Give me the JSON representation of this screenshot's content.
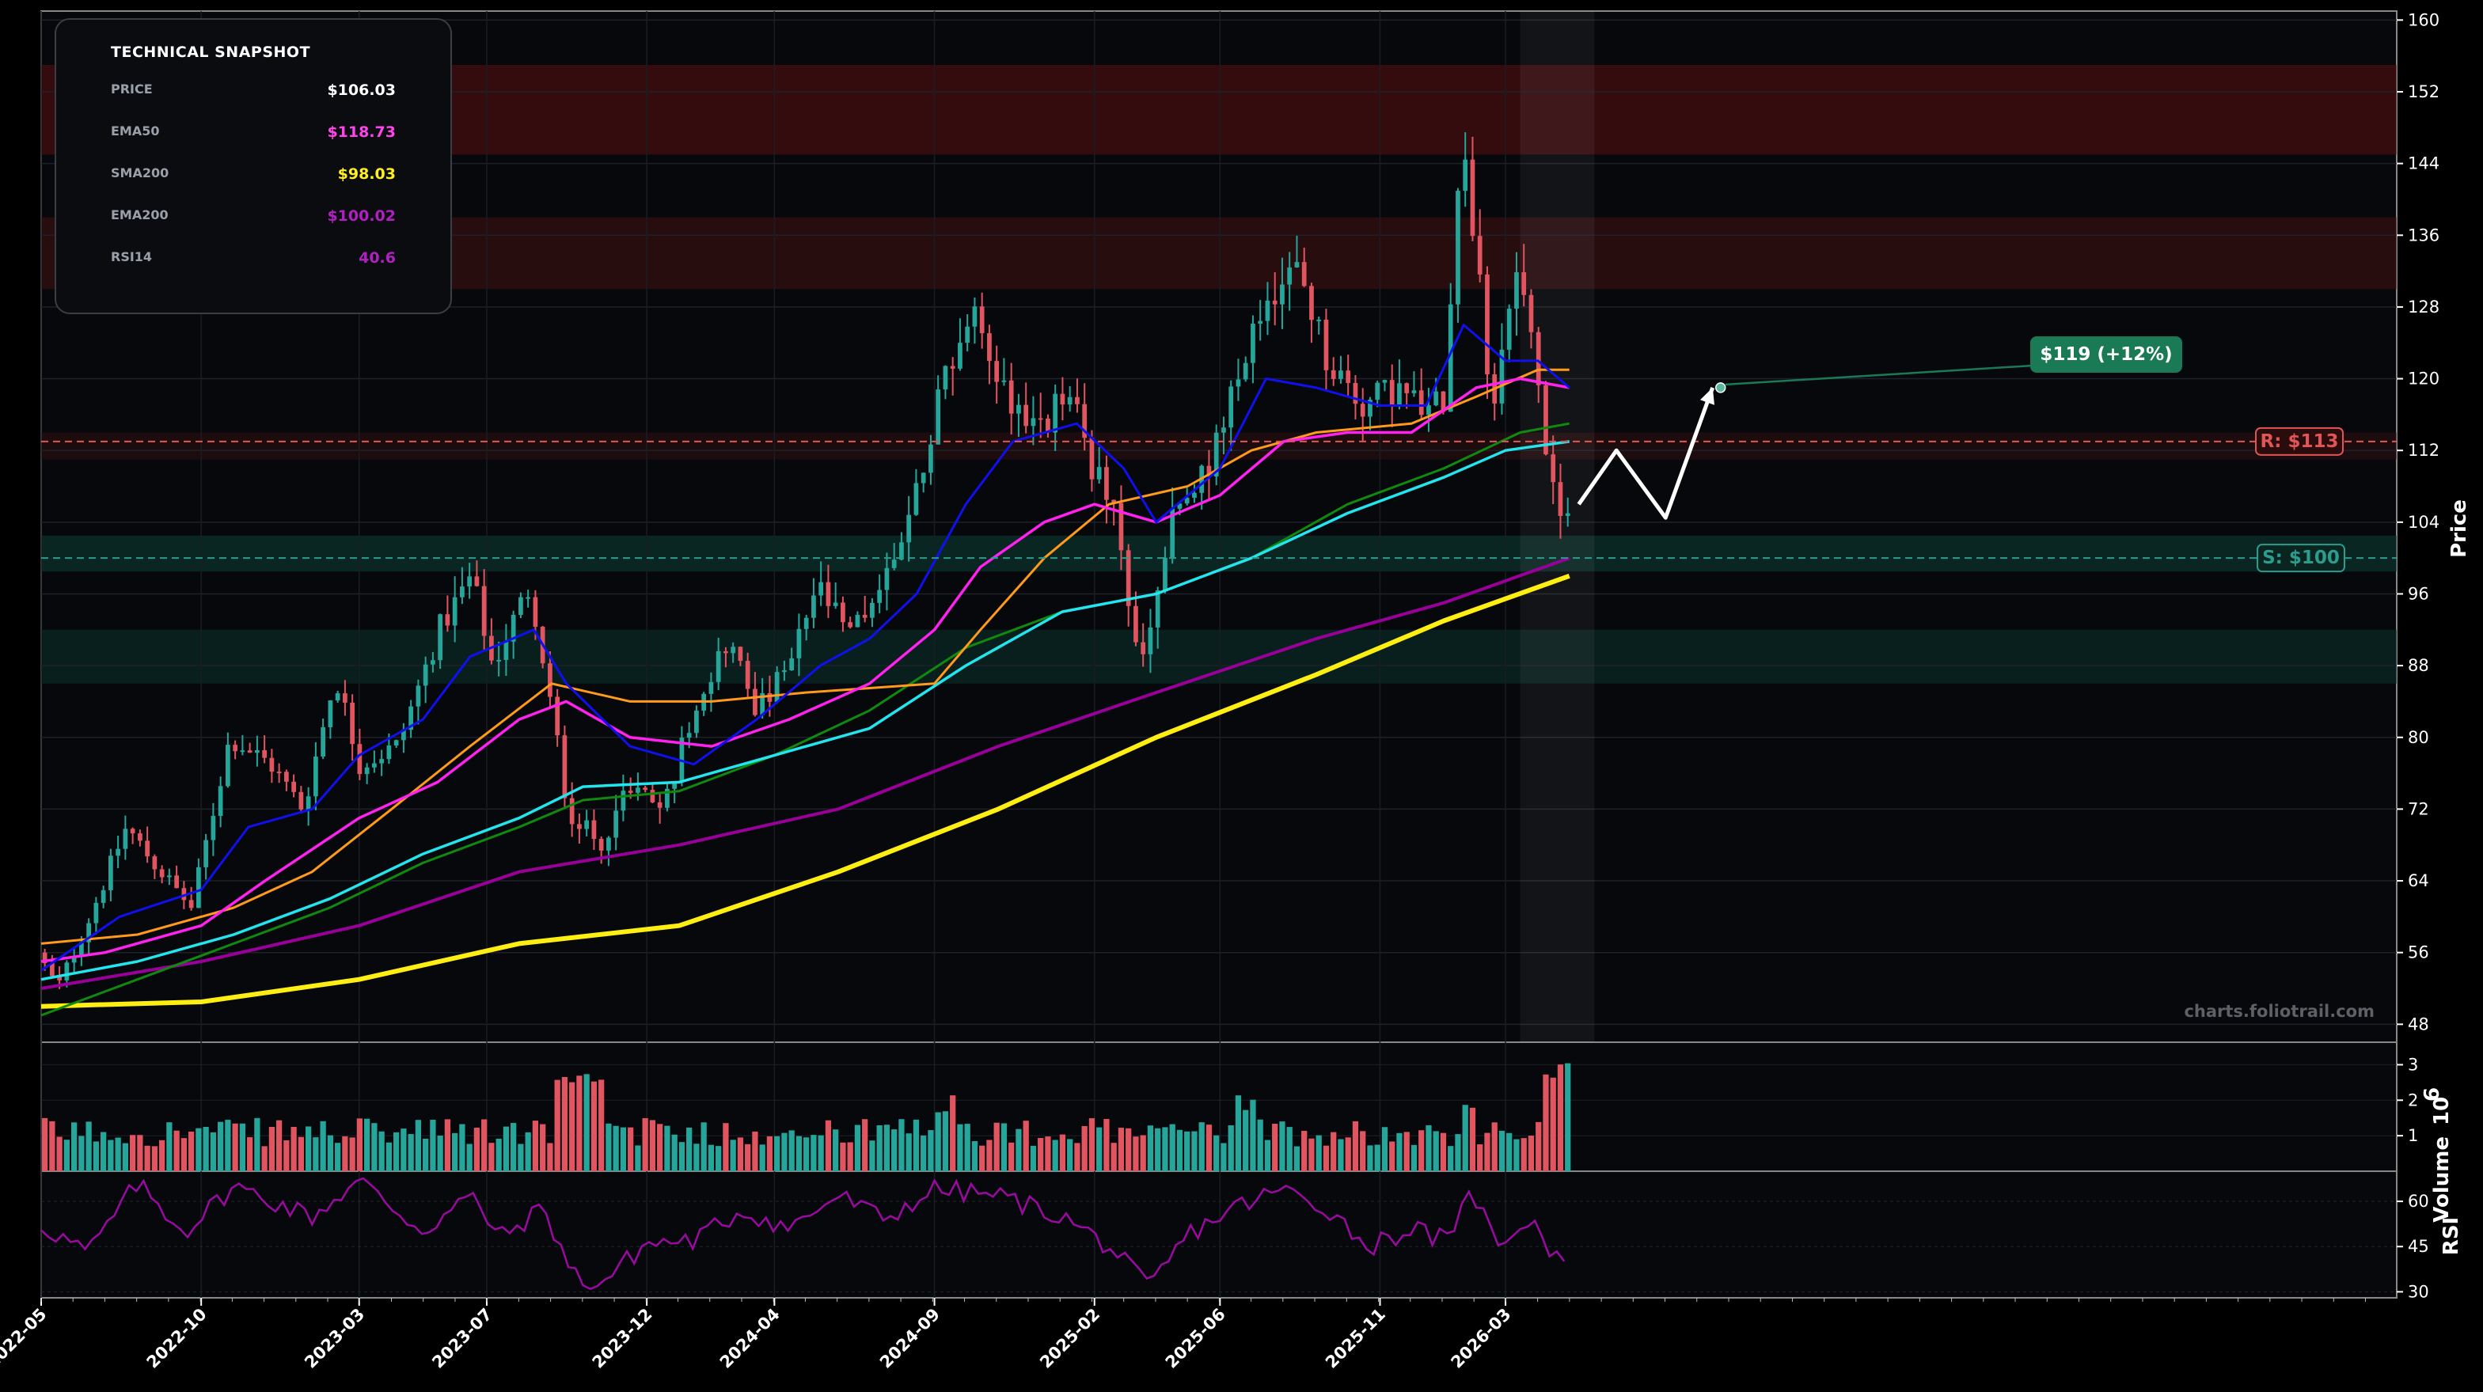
{
  "chart_data": {
    "type": "candlestick",
    "watermark": "charts.foliotrail.com",
    "price_axis": {
      "label": "Price",
      "ylim": [
        46,
        161
      ],
      "ticks": [
        48,
        56,
        64,
        72,
        80,
        88,
        96,
        104,
        112,
        120,
        128,
        136,
        144,
        152,
        160
      ]
    },
    "volume_axis": {
      "label": "Volume",
      "unit_label": "10",
      "unit_exponent": "6",
      "ylim": [
        0,
        3.5
      ],
      "ticks": [
        1,
        2,
        3
      ]
    },
    "rsi_axis": {
      "label": "RSI",
      "ylim": [
        28,
        70
      ],
      "ticks": [
        30,
        45,
        60
      ]
    },
    "x_axis": {
      "range": [
        "2022-05-01",
        "2028-06-30"
      ],
      "ticks": [
        "2022-05",
        "2022-10",
        "2023-03",
        "2023-07",
        "2023-12",
        "2024-04",
        "2024-09",
        "2025-02",
        "2025-06",
        "2025-11",
        "2026-03"
      ],
      "tick_dates": [
        "2022-05-01",
        "2022-10-01",
        "2023-03-01",
        "2023-07-01",
        "2023-12-01",
        "2024-04-01",
        "2024-09-01",
        "2025-02-01",
        "2025-06-01",
        "2025-11-01",
        "2026-03-01"
      ]
    },
    "snapshot": {
      "title": "TECHNICAL SNAPSHOT",
      "rows": [
        {
          "label": "PRICE",
          "value": "$106.03",
          "color": "#ffffff"
        },
        {
          "label": "EMA50",
          "value": "$118.73",
          "color": "#ff44ee"
        },
        {
          "label": "SMA200",
          "value": "$98.03",
          "color": "#ffee22"
        },
        {
          "label": "EMA200",
          "value": "$100.02",
          "color": "#b020c0"
        },
        {
          "label": "RSI14",
          "value": "40.6",
          "color": "#b020c0"
        }
      ]
    },
    "levels": {
      "resistance": {
        "label": "R: $113",
        "value": 113,
        "color": "#e05555"
      },
      "support": {
        "label": "S: $100",
        "value": 100,
        "color": "#2a9d8f"
      }
    },
    "zones": [
      {
        "kind": "resistance",
        "from": 145,
        "to": 155,
        "color": "#5a1010",
        "opacity": 0.55
      },
      {
        "kind": "resistance",
        "from": 130,
        "to": 138,
        "color": "#4a1212",
        "opacity": 0.5
      },
      {
        "kind": "resistance",
        "from": 111,
        "to": 114,
        "color": "#3a1212",
        "opacity": 0.45
      },
      {
        "kind": "support",
        "from": 98.5,
        "to": 102.5,
        "color": "#0e3a34",
        "opacity": 0.6
      },
      {
        "kind": "support",
        "from": 86,
        "to": 92,
        "color": "#0c2e2a",
        "opacity": 0.6
      }
    ],
    "target": {
      "label": "$119 (+12%)",
      "value": 119,
      "date": "2026-09-15"
    },
    "projection": [
      {
        "date": "2026-05-10",
        "value": 106
      },
      {
        "date": "2026-06-15",
        "value": 112
      },
      {
        "date": "2026-08-01",
        "value": 104.5
      },
      {
        "date": "2026-09-15",
        "value": 119
      }
    ],
    "highlight_window": [
      "2026-03-15",
      "2026-05-25"
    ],
    "ma_colors": {
      "blue": "#1010ee",
      "orange": "#ff9a1a",
      "magenta": "#ff22ee",
      "green": "#0f8a0f",
      "cyan": "#22e5ee",
      "purple": "#990099",
      "yellow": "#ffee11"
    },
    "up_color": "#26a69a",
    "down_color": "#e05560",
    "anchors": [
      [
        "2022-05-01",
        56
      ],
      [
        "2022-05-20",
        52
      ],
      [
        "2022-06-20",
        60
      ],
      [
        "2022-07-25",
        70
      ],
      [
        "2022-08-20",
        66
      ],
      [
        "2022-09-25",
        61
      ],
      [
        "2022-11-01",
        80
      ],
      [
        "2022-12-10",
        77
      ],
      [
        "2023-01-10",
        72
      ],
      [
        "2023-02-10",
        87
      ],
      [
        "2023-03-05",
        77
      ],
      [
        "2023-04-10",
        79
      ],
      [
        "2023-05-20",
        92
      ],
      [
        "2023-06-20",
        98
      ],
      [
        "2023-07-10",
        88
      ],
      [
        "2023-08-15",
        97
      ],
      [
        "2023-09-01",
        86
      ],
      [
        "2023-09-20",
        72
      ],
      [
        "2023-10-20",
        68
      ],
      [
        "2023-11-20",
        75
      ],
      [
        "2023-12-20",
        72
      ],
      [
        "2024-01-20",
        84
      ],
      [
        "2024-02-20",
        91
      ],
      [
        "2024-03-20",
        83
      ],
      [
        "2024-04-20",
        88
      ],
      [
        "2024-05-15",
        97
      ],
      [
        "2024-06-15",
        91
      ],
      [
        "2024-07-20",
        98
      ],
      [
        "2024-08-15",
        106
      ],
      [
        "2024-09-15",
        121
      ],
      [
        "2024-10-10",
        127
      ],
      [
        "2024-11-15",
        118
      ],
      [
        "2024-12-15",
        114
      ],
      [
        "2025-01-10",
        119
      ],
      [
        "2025-01-25",
        113
      ],
      [
        "2025-02-25",
        104
      ],
      [
        "2025-03-20",
        87
      ],
      [
        "2025-04-20",
        104
      ],
      [
        "2025-05-20",
        109
      ],
      [
        "2025-06-20",
        119
      ],
      [
        "2025-07-20",
        130
      ],
      [
        "2025-08-20",
        132
      ],
      [
        "2025-09-15",
        122
      ],
      [
        "2025-10-20",
        117
      ],
      [
        "2025-11-20",
        119
      ],
      [
        "2025-12-20",
        116
      ],
      [
        "2026-01-05",
        118
      ],
      [
        "2026-01-20",
        147
      ],
      [
        "2026-02-01",
        138
      ],
      [
        "2026-02-20",
        117
      ],
      [
        "2026-03-15",
        134
      ],
      [
        "2026-04-01",
        122
      ],
      [
        "2026-04-20",
        106
      ],
      [
        "2026-05-01",
        106
      ]
    ],
    "ma_points": {
      "blue": [
        [
          "2022-05-01",
          54
        ],
        [
          "2022-07-15",
          60
        ],
        [
          "2022-10-01",
          63
        ],
        [
          "2022-11-15",
          70
        ],
        [
          "2023-01-15",
          72
        ],
        [
          "2023-03-01",
          78
        ],
        [
          "2023-05-01",
          82
        ],
        [
          "2023-06-15",
          89
        ],
        [
          "2023-08-15",
          92
        ],
        [
          "2023-09-15",
          86
        ],
        [
          "2023-11-15",
          79
        ],
        [
          "2024-01-15",
          77
        ],
        [
          "2024-03-15",
          82
        ],
        [
          "2024-05-15",
          88
        ],
        [
          "2024-07-01",
          91
        ],
        [
          "2024-08-15",
          96
        ],
        [
          "2024-10-01",
          106
        ],
        [
          "2024-11-15",
          113
        ],
        [
          "2025-01-15",
          115
        ],
        [
          "2025-03-01",
          110
        ],
        [
          "2025-04-01",
          104
        ],
        [
          "2025-06-01",
          110
        ],
        [
          "2025-07-15",
          120
        ],
        [
          "2025-09-01",
          119
        ],
        [
          "2025-11-01",
          117
        ],
        [
          "2025-12-15",
          117
        ],
        [
          "2026-01-20",
          126
        ],
        [
          "2026-03-01",
          122
        ],
        [
          "2026-04-01",
          122
        ],
        [
          "2026-05-01",
          119
        ]
      ],
      "orange": [
        [
          "2022-05-01",
          57
        ],
        [
          "2022-08-01",
          58
        ],
        [
          "2022-11-01",
          61
        ],
        [
          "2023-01-15",
          65
        ],
        [
          "2023-04-01",
          72
        ],
        [
          "2023-06-15",
          79
        ],
        [
          "2023-09-01",
          86
        ],
        [
          "2023-11-15",
          84
        ],
        [
          "2024-02-01",
          84
        ],
        [
          "2024-05-01",
          85
        ],
        [
          "2024-09-01",
          86
        ],
        [
          "2024-10-15",
          92
        ],
        [
          "2024-12-15",
          100
        ],
        [
          "2025-02-15",
          106
        ],
        [
          "2025-05-01",
          108
        ],
        [
          "2025-07-01",
          112
        ],
        [
          "2025-09-01",
          114
        ],
        [
          "2025-12-01",
          115
        ],
        [
          "2026-02-01",
          118
        ],
        [
          "2026-04-01",
          121
        ],
        [
          "2026-05-01",
          121
        ]
      ],
      "magenta": [
        [
          "2022-05-01",
          55
        ],
        [
          "2022-07-01",
          56
        ],
        [
          "2022-10-01",
          59
        ],
        [
          "2022-12-01",
          64
        ],
        [
          "2023-03-01",
          71
        ],
        [
          "2023-05-15",
          75
        ],
        [
          "2023-08-01",
          82
        ],
        [
          "2023-09-15",
          84
        ],
        [
          "2023-11-15",
          80
        ],
        [
          "2024-02-01",
          79
        ],
        [
          "2024-04-15",
          82
        ],
        [
          "2024-07-01",
          86
        ],
        [
          "2024-09-01",
          92
        ],
        [
          "2024-10-15",
          99
        ],
        [
          "2024-12-15",
          104
        ],
        [
          "2025-02-01",
          106
        ],
        [
          "2025-04-01",
          104
        ],
        [
          "2025-06-01",
          107
        ],
        [
          "2025-08-01",
          113
        ],
        [
          "2025-10-01",
          114
        ],
        [
          "2025-12-01",
          114
        ],
        [
          "2026-02-01",
          119
        ],
        [
          "2026-03-15",
          120
        ],
        [
          "2026-05-01",
          119
        ]
      ],
      "green": [
        [
          "2022-05-01",
          49
        ],
        [
          "2022-08-01",
          53
        ],
        [
          "2022-11-01",
          57
        ],
        [
          "2023-02-01",
          61
        ],
        [
          "2023-05-01",
          66
        ],
        [
          "2023-08-01",
          70
        ],
        [
          "2023-10-01",
          73
        ],
        [
          "2024-01-01",
          74
        ],
        [
          "2024-04-01",
          78
        ],
        [
          "2024-07-01",
          83
        ],
        [
          "2024-10-01",
          90
        ],
        [
          "2025-01-01",
          94
        ],
        [
          "2025-04-01",
          96
        ],
        [
          "2025-07-01",
          100
        ],
        [
          "2025-10-01",
          106
        ],
        [
          "2026-01-01",
          110
        ],
        [
          "2026-03-15",
          114
        ],
        [
          "2026-05-01",
          115
        ]
      ],
      "cyan": [
        [
          "2022-05-01",
          53
        ],
        [
          "2022-08-01",
          55
        ],
        [
          "2022-11-01",
          58
        ],
        [
          "2023-02-01",
          62
        ],
        [
          "2023-05-01",
          67
        ],
        [
          "2023-08-01",
          71
        ],
        [
          "2023-10-01",
          74.5
        ],
        [
          "2024-01-01",
          75
        ],
        [
          "2024-04-01",
          78
        ],
        [
          "2024-07-01",
          81
        ],
        [
          "2024-10-01",
          88
        ],
        [
          "2025-01-01",
          94
        ],
        [
          "2025-04-01",
          96
        ],
        [
          "2025-07-01",
          100
        ],
        [
          "2025-10-01",
          105
        ],
        [
          "2026-01-01",
          109
        ],
        [
          "2026-03-01",
          112
        ],
        [
          "2026-05-01",
          113
        ]
      ],
      "purple": [
        [
          "2022-05-01",
          52
        ],
        [
          "2022-10-01",
          55
        ],
        [
          "2023-03-01",
          59
        ],
        [
          "2023-08-01",
          65
        ],
        [
          "2024-01-01",
          68
        ],
        [
          "2024-06-01",
          72
        ],
        [
          "2024-11-01",
          79
        ],
        [
          "2025-04-01",
          85
        ],
        [
          "2025-09-01",
          91
        ],
        [
          "2026-01-01",
          95
        ],
        [
          "2026-05-01",
          100
        ]
      ],
      "yellow": [
        [
          "2022-05-01",
          50
        ],
        [
          "2022-10-01",
          50.5
        ],
        [
          "2023-03-01",
          53
        ],
        [
          "2023-08-01",
          57
        ],
        [
          "2024-01-01",
          59
        ],
        [
          "2024-06-01",
          65
        ],
        [
          "2024-11-01",
          72
        ],
        [
          "2025-04-01",
          80
        ],
        [
          "2025-09-01",
          87
        ],
        [
          "2026-01-01",
          93
        ],
        [
          "2026-05-01",
          98
        ]
      ]
    },
    "rsi_points": [
      [
        "2022-05-01",
        52
      ],
      [
        "2022-06-15",
        43
      ],
      [
        "2022-08-01",
        66
      ],
      [
        "2022-09-15",
        50
      ],
      [
        "2022-11-01",
        65
      ],
      [
        "2023-01-15",
        55
      ],
      [
        "2023-03-01",
        67
      ],
      [
        "2023-05-01",
        50
      ],
      [
        "2023-06-15",
        62
      ],
      [
        "2023-07-15",
        48
      ],
      [
        "2023-08-25",
        58
      ],
      [
        "2023-09-20",
        36
      ],
      [
        "2023-10-15",
        32
      ],
      [
        "2023-12-01",
        46
      ],
      [
        "2024-01-15",
        47
      ],
      [
        "2024-03-01",
        57
      ],
      [
        "2024-04-15",
        51
      ],
      [
        "2024-06-01",
        62
      ],
      [
        "2024-07-15",
        54
      ],
      [
        "2024-09-01",
        64
      ],
      [
        "2024-11-01",
        62
      ],
      [
        "2025-01-01",
        55
      ],
      [
        "2025-02-15",
        45
      ],
      [
        "2025-03-25",
        31
      ],
      [
        "2025-05-01",
        49
      ],
      [
        "2025-06-15",
        58
      ],
      [
        "2025-08-01",
        64
      ],
      [
        "2025-09-15",
        57
      ],
      [
        "2025-10-20",
        45
      ],
      [
        "2025-12-01",
        51
      ],
      [
        "2026-01-10",
        46
      ],
      [
        "2026-01-25",
        66
      ],
      [
        "2026-02-20",
        46
      ],
      [
        "2026-03-25",
        55
      ],
      [
        "2026-04-15",
        43
      ],
      [
        "2026-05-01",
        40.6
      ]
    ],
    "volume_highs": [
      [
        "2023-09-01",
        "2023-10-15",
        3.1
      ],
      [
        "2024-09-01",
        "2024-09-15",
        2.2
      ],
      [
        "2025-06-15",
        "2025-07-05",
        2.2
      ],
      [
        "2026-01-15",
        "2026-01-31",
        2.3
      ],
      [
        "2026-04-01",
        "2026-05-01",
        3.3
      ]
    ]
  }
}
